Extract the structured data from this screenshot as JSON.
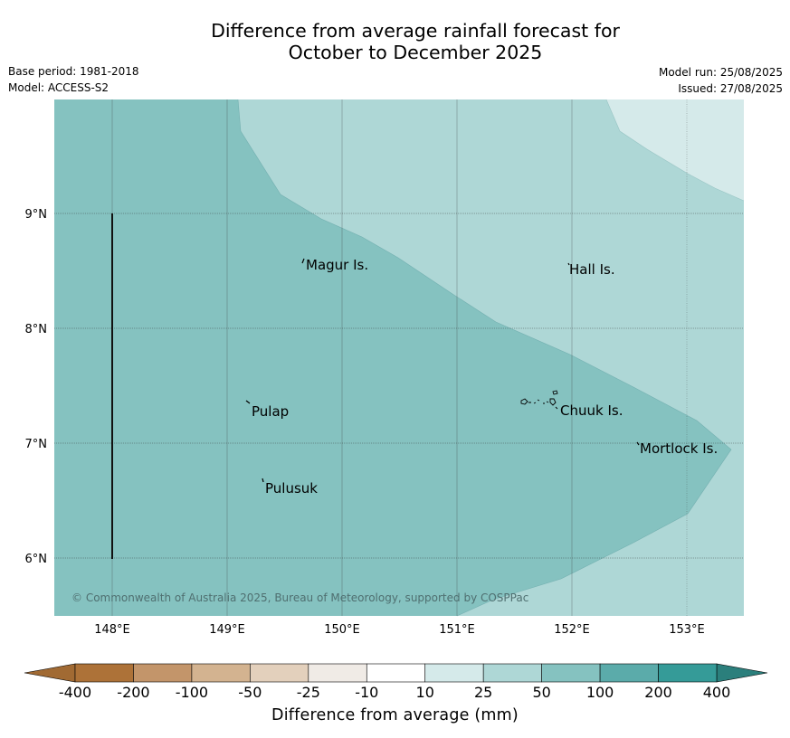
{
  "title_line1": "Difference from average rainfall forecast for",
  "title_line2": "October to December 2025",
  "meta": {
    "base_period": "Base period: 1981-2018",
    "model": "Model: ACCESS-S2",
    "model_run": "Model run: 25/08/2025",
    "issued": "Issued: 27/08/2025"
  },
  "map": {
    "lon_ticks": [
      "148°E",
      "149°E",
      "150°E",
      "151°E",
      "152°E",
      "153°E"
    ],
    "lat_ticks": [
      "9°N",
      "8°N",
      "7°N",
      "6°N"
    ],
    "places": {
      "magur": "Magur Is.",
      "hall": "Hall Is.",
      "pulap": "Pulap",
      "chuuk": "Chuuk Is.",
      "mortlock": "Mortlock Is.",
      "pulusuk": "Pulusuk"
    },
    "copyright": "© Commonwealth of Australia 2025, Bureau of Meteorology, supported by COSPPac",
    "fill_colors": {
      "50_100": "#85c2c0",
      "25_50": "#aed7d6",
      "10_25": "#d5eaea"
    }
  },
  "legend": {
    "title": "Difference from average (mm)",
    "ticks": [
      "-400",
      "-200",
      "-100",
      "-50",
      "-25",
      "-10",
      "10",
      "25",
      "50",
      "100",
      "200",
      "400"
    ],
    "colors": [
      "#ad7238",
      "#c3956a",
      "#d3b390",
      "#e3d0bc",
      "#f0ebe6",
      "#ffffff",
      "#d5eaea",
      "#aed7d6",
      "#85c2c0",
      "#5babaa",
      "#359b98"
    ],
    "extend_low_color": "#a16a33",
    "extend_high_color": "#2b7f7c"
  }
}
